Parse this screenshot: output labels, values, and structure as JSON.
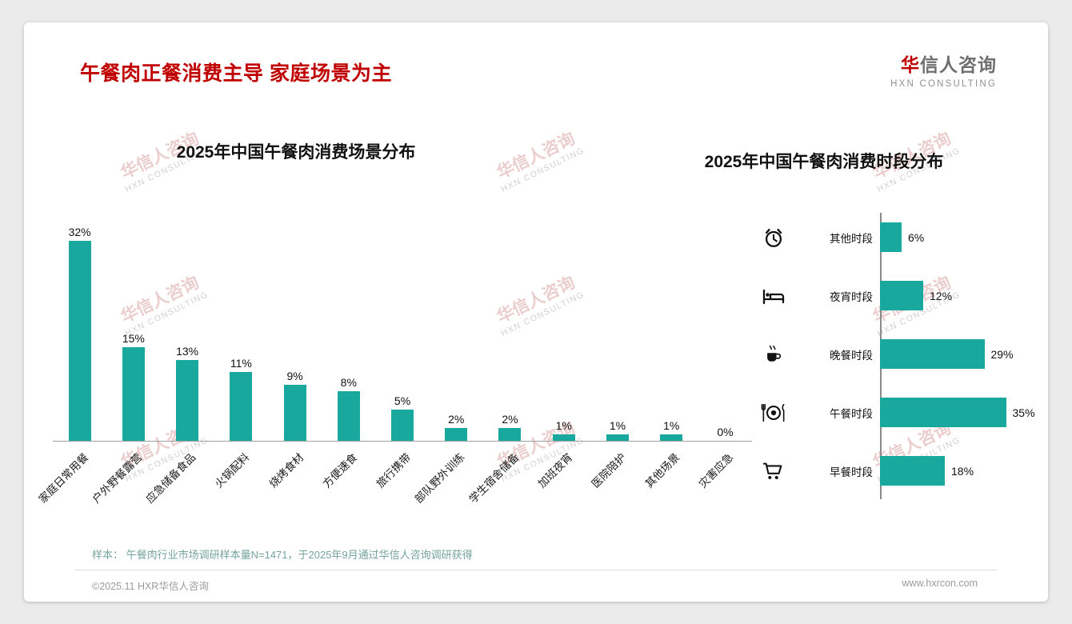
{
  "page": {
    "title": "午餐肉正餐消费主导 家庭场景为主",
    "brand": {
      "name_red": "华",
      "name_rest": "信人咨询",
      "subtitle": "HXN CONSULTING"
    },
    "watermark": {
      "line1": "华信人咨询",
      "line2": "HXN CONSULTING"
    },
    "footer": {
      "sample_note": "样本： 午餐肉行业市场调研样本量N=1471，于2025年9月通过华信人咨询调研获得",
      "copyright": "©2025.11 HXR华信人咨询",
      "website": "www.hxrcon.com"
    },
    "accent_color": "#19A89D",
    "title_color": "#C00000"
  },
  "chart_data": [
    {
      "type": "bar",
      "orientation": "vertical",
      "title": "2025年中国午餐肉消费场景分布",
      "categories": [
        "家庭日常用餐",
        "户外野餐露营",
        "应急储备食品",
        "火锅配料",
        "烧烤食材",
        "方便速食",
        "旅行携带",
        "部队野外训练",
        "学生宿舍储备",
        "加班夜宵",
        "医院陪护",
        "其他场景",
        "灾害应急"
      ],
      "values": [
        32,
        15,
        13,
        11,
        9,
        8,
        5,
        2,
        2,
        1,
        1,
        1,
        0
      ],
      "unit": "%",
      "bar_color": "#19A89D",
      "ylim": [
        0,
        35
      ],
      "grid": false,
      "legend": "none"
    },
    {
      "type": "bar",
      "orientation": "horizontal",
      "title": "2025年中国午餐肉消费时段分布",
      "categories": [
        "其他时段",
        "夜宵时段",
        "晚餐时段",
        "午餐时段",
        "早餐时段"
      ],
      "values": [
        6,
        12,
        29,
        35,
        18
      ],
      "icons": [
        "alarm-clock-icon",
        "bed-icon",
        "coffee-cup-icon",
        "dining-plate-icon",
        "shopping-cart-icon"
      ],
      "unit": "%",
      "bar_color": "#19A89D",
      "xlim": [
        0,
        40
      ],
      "grid": false,
      "legend": "none"
    }
  ]
}
